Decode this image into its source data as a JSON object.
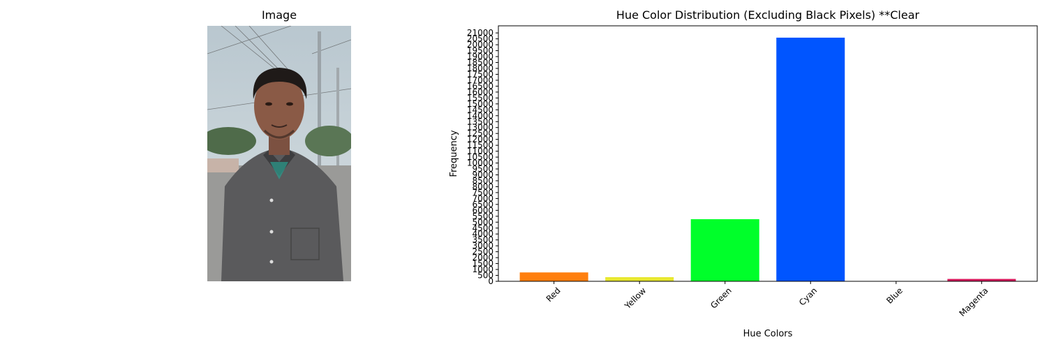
{
  "image_panel": {
    "title": "Image",
    "photo_description": "portrait photo of a man in a grey shirt on a street"
  },
  "chart_data": {
    "type": "bar",
    "title": "Hue Color Distribution (Excluding Black Pixels) **Clear",
    "xlabel": "Hue Colors",
    "ylabel": "Frequency",
    "categories": [
      "Red",
      "Yellow",
      "Green",
      "Cyan",
      "Blue",
      "Magenta"
    ],
    "values": [
      750,
      350,
      5250,
      20600,
      0,
      200
    ],
    "colors": [
      "#ff7f0e",
      "#e8e830",
      "#00ff2a",
      "#0055ff",
      "#0000ff",
      "#d6195b"
    ],
    "ylim": [
      0,
      21600
    ],
    "yticks": [
      0,
      500,
      1000,
      1500,
      2000,
      2500,
      3000,
      3500,
      4000,
      4500,
      5000,
      5500,
      6000,
      6500,
      7000,
      7500,
      8000,
      8500,
      9000,
      9500,
      10000,
      10500,
      11000,
      11500,
      12000,
      12500,
      13000,
      13500,
      14000,
      14500,
      15000,
      15500,
      16000,
      16500,
      17000,
      17500,
      18000,
      18500,
      19000,
      19500,
      20000,
      20500,
      21000
    ],
    "grid": false,
    "xtick_rotation": 45
  }
}
